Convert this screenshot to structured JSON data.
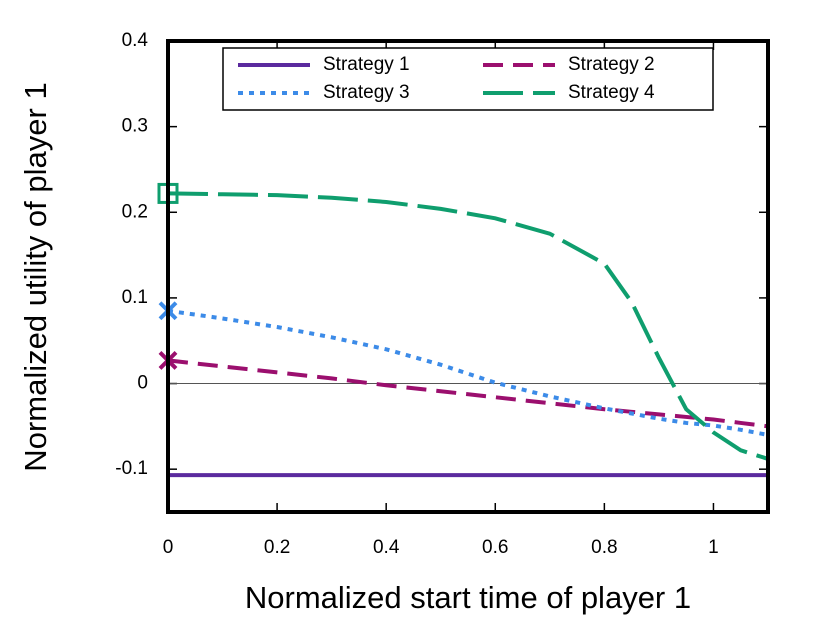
{
  "chart_data": {
    "type": "line",
    "xlabel": "Normalized start time of player 1",
    "ylabel": "Normalized utility of player 1",
    "x": [
      0,
      0.1,
      0.2,
      0.3,
      0.4,
      0.5,
      0.6,
      0.7,
      0.8,
      0.85,
      0.9,
      0.95,
      1,
      1.05,
      1.1
    ],
    "series": [
      {
        "name": "Strategy 1",
        "color": "#5b2a9e",
        "dash": "none",
        "values": [
          -0.107,
          -0.107,
          -0.107,
          -0.107,
          -0.107,
          -0.107,
          -0.107,
          -0.107,
          -0.107,
          -0.107,
          -0.107,
          -0.107,
          -0.107,
          -0.107,
          -0.107
        ]
      },
      {
        "name": "Strategy 2",
        "color": "#9b0f6e",
        "dash": "20,10",
        "marker": "x",
        "values": [
          0.027,
          0.02,
          0.013,
          0.006,
          -0.002,
          -0.009,
          -0.016,
          -0.023,
          -0.03,
          -0.033,
          -0.036,
          -0.039,
          -0.042,
          -0.046,
          -0.05
        ]
      },
      {
        "name": "Strategy 3",
        "color": "#3c8be8",
        "dash": "5,6",
        "marker": "x",
        "values": [
          0.085,
          0.076,
          0.066,
          0.054,
          0.04,
          0.022,
          0.001,
          -0.015,
          -0.029,
          -0.035,
          -0.041,
          -0.046,
          -0.049,
          -0.054,
          -0.06
        ]
      },
      {
        "name": "Strategy 4",
        "color": "#0f9e6e",
        "dash": "40,10",
        "marker": "square",
        "values": [
          0.222,
          0.221,
          0.22,
          0.217,
          0.212,
          0.204,
          0.193,
          0.175,
          0.14,
          0.095,
          0.03,
          -0.03,
          -0.057,
          -0.078,
          -0.088
        ]
      }
    ],
    "xlim": [
      0,
      1.1
    ],
    "xticks": [
      0,
      0.2,
      0.4,
      0.6,
      0.8,
      1
    ],
    "ylim": [
      -0.15,
      0.4
    ],
    "yticks": [
      -0.1,
      0,
      0.1,
      0.2,
      0.3,
      0.4
    ],
    "legend": "top"
  }
}
